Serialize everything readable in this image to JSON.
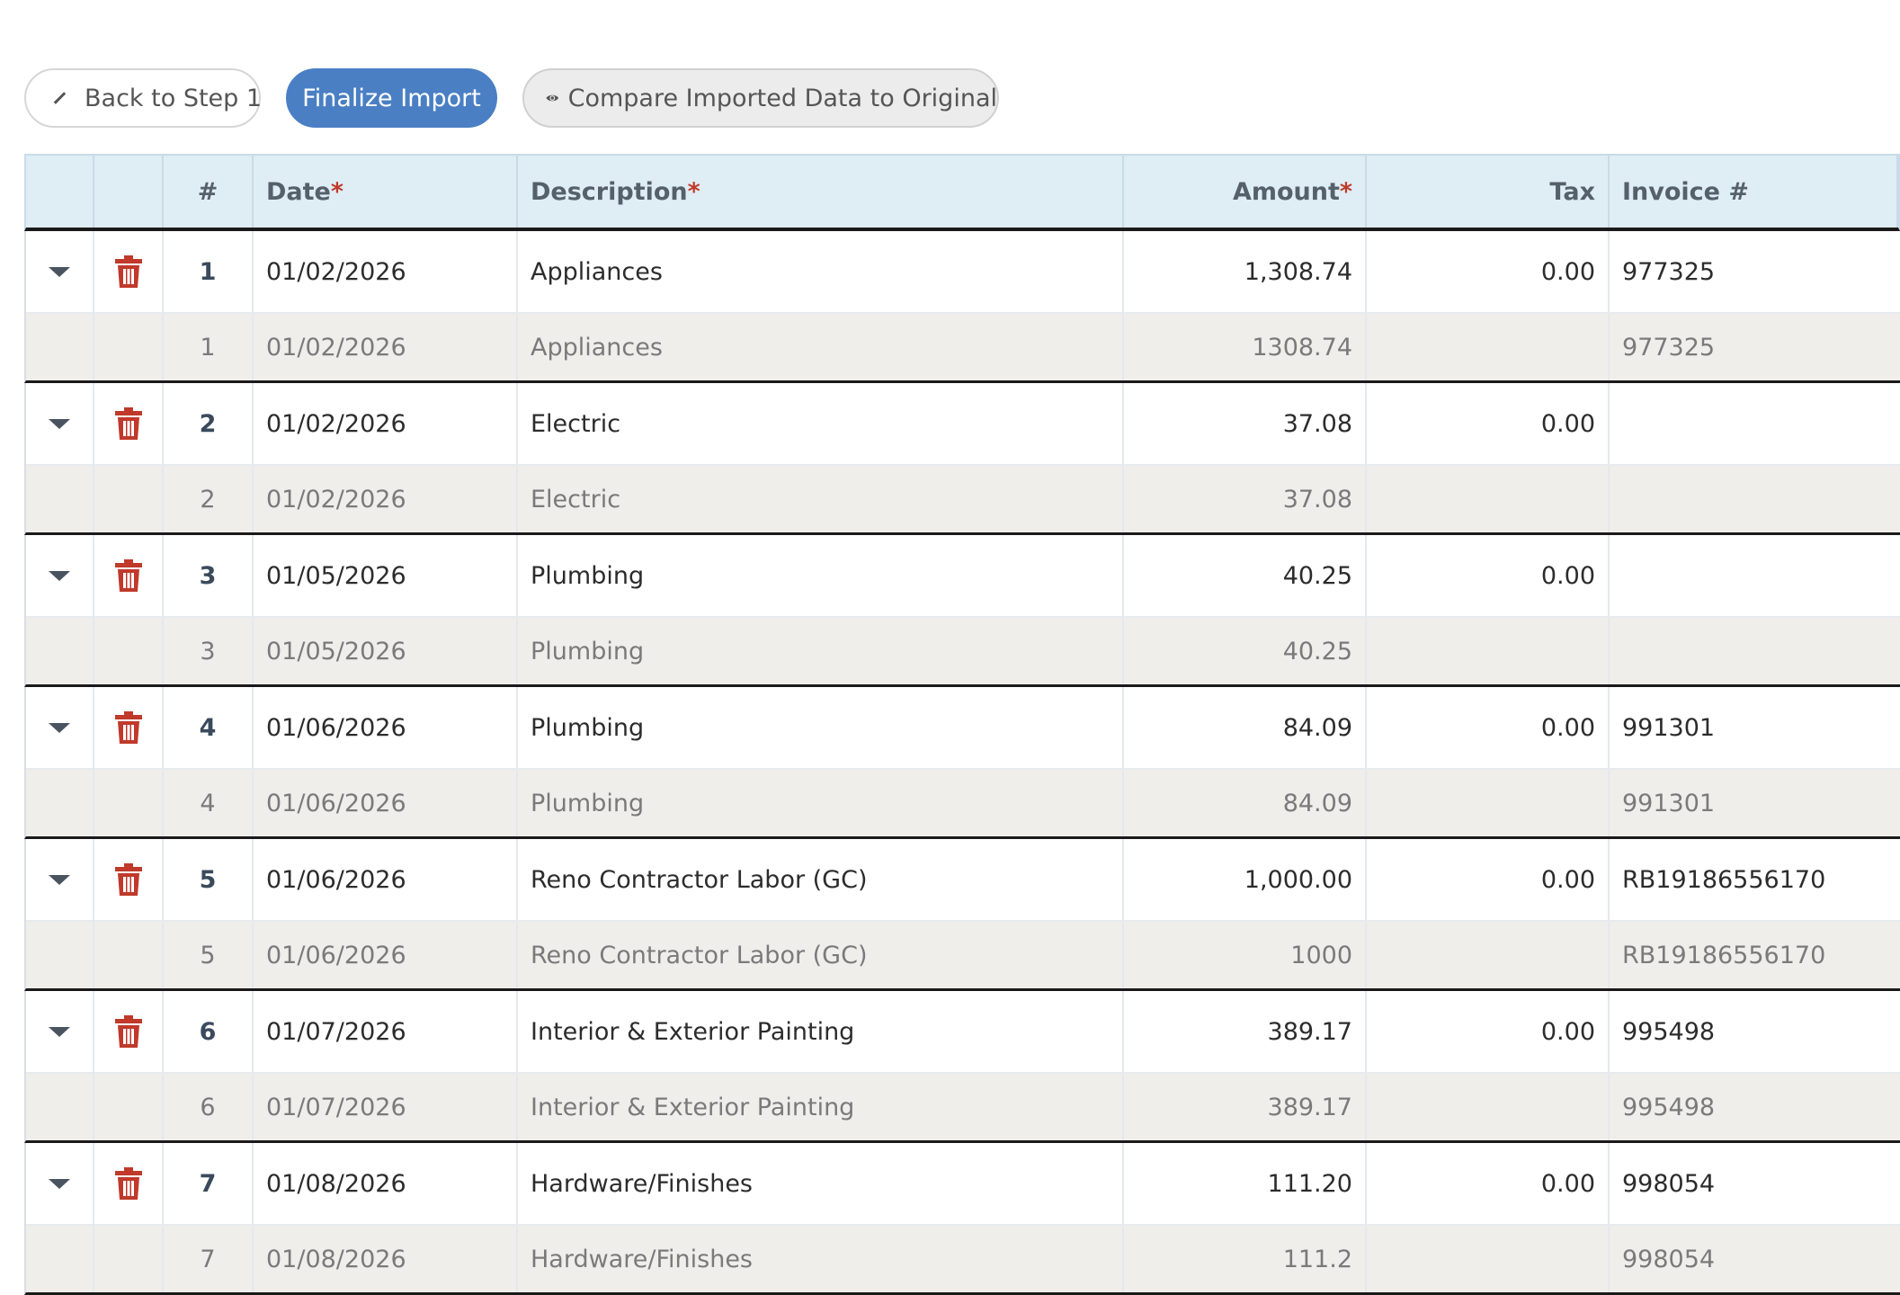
{
  "toolbar": {
    "back_label": "Back to Step 1",
    "finalize_label": "Finalize Import",
    "compare_label": "Compare Imported Data to Original"
  },
  "colors": {
    "primary": "#4a7fc4",
    "danger": "#c0392b",
    "header_bg": "#dfedf5",
    "original_row_bg": "#efeeeb"
  },
  "table": {
    "headers": {
      "num": "#",
      "date": "Date",
      "description": "Description",
      "amount": "Amount",
      "tax": "Tax",
      "invoice": "Invoice #",
      "required_mark": "*"
    },
    "rows": [
      {
        "imported": {
          "num": "1",
          "date": "01/02/2026",
          "description": "Appliances",
          "amount": "1,308.74",
          "tax": "0.00",
          "invoice": "977325"
        },
        "original": {
          "num": "1",
          "date": "01/02/2026",
          "description": "Appliances",
          "amount": "1308.74",
          "tax": "",
          "invoice": "977325"
        }
      },
      {
        "imported": {
          "num": "2",
          "date": "01/02/2026",
          "description": "Electric",
          "amount": "37.08",
          "tax": "0.00",
          "invoice": ""
        },
        "original": {
          "num": "2",
          "date": "01/02/2026",
          "description": "Electric",
          "amount": "37.08",
          "tax": "",
          "invoice": ""
        }
      },
      {
        "imported": {
          "num": "3",
          "date": "01/05/2026",
          "description": "Plumbing",
          "amount": "40.25",
          "tax": "0.00",
          "invoice": ""
        },
        "original": {
          "num": "3",
          "date": "01/05/2026",
          "description": "Plumbing",
          "amount": "40.25",
          "tax": "",
          "invoice": ""
        }
      },
      {
        "imported": {
          "num": "4",
          "date": "01/06/2026",
          "description": "Plumbing",
          "amount": "84.09",
          "tax": "0.00",
          "invoice": "991301"
        },
        "original": {
          "num": "4",
          "date": "01/06/2026",
          "description": "Plumbing",
          "amount": "84.09",
          "tax": "",
          "invoice": "991301"
        }
      },
      {
        "imported": {
          "num": "5",
          "date": "01/06/2026",
          "description": "Reno Contractor Labor (GC)",
          "amount": "1,000.00",
          "tax": "0.00",
          "invoice": "RB19186556170"
        },
        "original": {
          "num": "5",
          "date": "01/06/2026",
          "description": "Reno Contractor Labor (GC)",
          "amount": "1000",
          "tax": "",
          "invoice": "RB19186556170"
        }
      },
      {
        "imported": {
          "num": "6",
          "date": "01/07/2026",
          "description": "Interior & Exterior Painting",
          "amount": "389.17",
          "tax": "0.00",
          "invoice": "995498"
        },
        "original": {
          "num": "6",
          "date": "01/07/2026",
          "description": "Interior & Exterior Painting",
          "amount": "389.17",
          "tax": "",
          "invoice": "995498"
        }
      },
      {
        "imported": {
          "num": "7",
          "date": "01/08/2026",
          "description": "Hardware/Finishes",
          "amount": "111.20",
          "tax": "0.00",
          "invoice": "998054"
        },
        "original": {
          "num": "7",
          "date": "01/08/2026",
          "description": "Hardware/Finishes",
          "amount": "111.2",
          "tax": "",
          "invoice": "998054"
        }
      }
    ]
  }
}
